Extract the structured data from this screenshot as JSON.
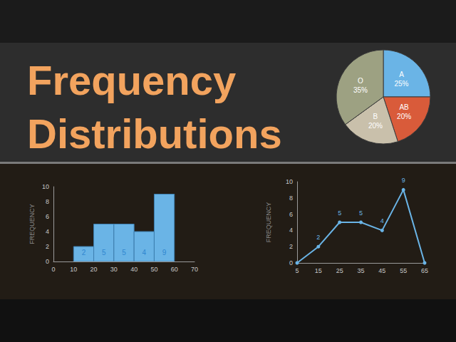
{
  "title": "Frequency Distributions",
  "chart_data": [
    {
      "type": "pie",
      "categories": [
        "A",
        "AB",
        "B",
        "O"
      ],
      "values": [
        25,
        20,
        20,
        35
      ],
      "value_labels": [
        "25%",
        "20%",
        "20%",
        "35%"
      ],
      "colors": [
        "#6ab4e6",
        "#d95b3a",
        "#c9c0ab",
        "#9da182"
      ],
      "data_labels": true
    },
    {
      "type": "histogram",
      "bins": [
        10,
        20,
        30,
        40,
        50,
        60
      ],
      "values": [
        2,
        5,
        5,
        4,
        9
      ],
      "color": "#6ab4e6",
      "xlim": [
        0,
        70
      ],
      "xticks": [
        0,
        10,
        20,
        30,
        40,
        50,
        60,
        70
      ],
      "ylim": [
        0,
        10
      ],
      "yticks": [
        0,
        2,
        4,
        6,
        8,
        10
      ],
      "ylabel": "FREQUENCY",
      "data_labels": true,
      "grid": false
    },
    {
      "type": "line",
      "x": [
        5,
        15,
        25,
        35,
        45,
        55,
        65
      ],
      "values": [
        0,
        2,
        5,
        5,
        4,
        9,
        0
      ],
      "value_labels": [
        null,
        "2",
        "5",
        "5",
        "4",
        "9",
        null
      ],
      "color": "#6ab4e6",
      "marker": "circle",
      "xlim": [
        5,
        65
      ],
      "xticks": [
        5,
        15,
        25,
        35,
        45,
        55,
        65
      ],
      "ylim": [
        0,
        10
      ],
      "yticks": [
        0,
        2,
        4,
        6,
        8,
        10
      ],
      "ylabel": "FREQUENCY",
      "data_labels": true,
      "grid": false
    }
  ]
}
